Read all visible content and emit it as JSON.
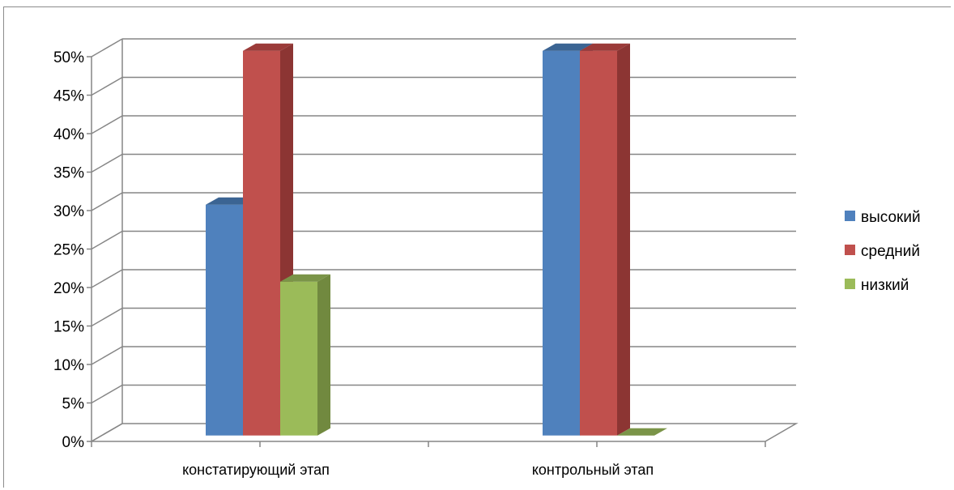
{
  "chart_data": {
    "type": "bar",
    "categories": [
      "констатирующий этап",
      "контрольный этап"
    ],
    "series": [
      {
        "name": "высокий",
        "values": [
          30,
          50
        ],
        "color": "#4F81BD",
        "side_color": "#385D8A",
        "top_color": "#3B6493"
      },
      {
        "name": "средний",
        "values": [
          50,
          50
        ],
        "color": "#C0504D",
        "side_color": "#8C3533",
        "top_color": "#9B3B39"
      },
      {
        "name": "низкий",
        "values": [
          20,
          0
        ],
        "color": "#9BBB59",
        "side_color": "#71893F",
        "top_color": "#7A9448"
      }
    ],
    "y_ticks": [
      "0%",
      "5%",
      "10%",
      "15%",
      "20%",
      "25%",
      "30%",
      "35%",
      "40%",
      "45%",
      "50%"
    ],
    "ylim": [
      0,
      50
    ],
    "y_unit": "%",
    "grid": true,
    "legend_position": "right",
    "style": "3d-clustered-column"
  }
}
